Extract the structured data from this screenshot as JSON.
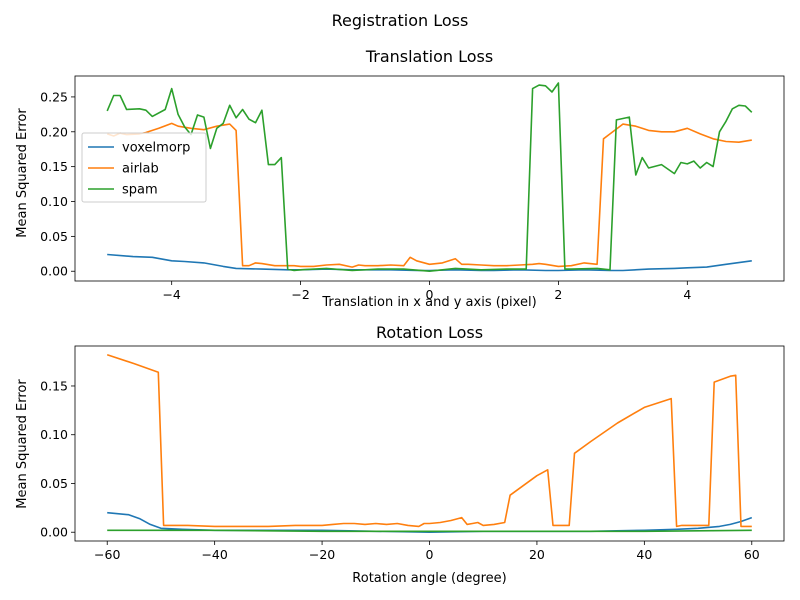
{
  "suptitle": "Registration Loss",
  "chart_data": [
    {
      "type": "line",
      "title": "Translation Loss",
      "xlabel": "Translation in x and y axis (pixel)",
      "ylabel": "Mean Squared Error",
      "xlim": [
        -5.5,
        5.5
      ],
      "ylim": [
        -0.014,
        0.28
      ],
      "xticks": [
        -4,
        -2,
        0,
        2,
        4
      ],
      "yticks": [
        0.0,
        0.05,
        0.1,
        0.15,
        0.2,
        0.25
      ],
      "ytick_labels": [
        "0.00",
        "0.05",
        "0.10",
        "0.15",
        "0.20",
        "0.25"
      ],
      "legend": "center-left",
      "series": [
        {
          "name": "voxelmorp",
          "color": "#1f77b4",
          "x": [
            -5,
            -4.6,
            -4.3,
            -4,
            -3.8,
            -3.5,
            -3.2,
            -3,
            -2.6,
            -2.2,
            -2,
            -1.6,
            -1.2,
            -1,
            -0.6,
            -0.2,
            0,
            0.4,
            0.8,
            1,
            1.4,
            1.8,
            2,
            2.4,
            2.8,
            3,
            3.4,
            3.8,
            4,
            4.3,
            4.6,
            5
          ],
          "y": [
            0.024,
            0.021,
            0.02,
            0.015,
            0.014,
            0.012,
            0.007,
            0.004,
            0.003,
            0.002,
            0.002,
            0.003,
            0.002,
            0.002,
            0.002,
            0.001,
            0.001,
            0.002,
            0.001,
            0.001,
            0.002,
            0.001,
            0.001,
            0.002,
            0.001,
            0.001,
            0.003,
            0.004,
            0.005,
            0.006,
            0.01,
            0.015
          ]
        },
        {
          "name": "airlab",
          "color": "#ff7f0e",
          "x": [
            -5,
            -4.9,
            -4.8,
            -4.7,
            -4.5,
            -4.4,
            -4.2,
            -4.0,
            -3.9,
            -3.7,
            -3.5,
            -3.3,
            -3.1,
            -3.0,
            -2.9,
            -2.8,
            -2.7,
            -2.6,
            -2.4,
            -2.2,
            -2.1,
            -2.0,
            -1.8,
            -1.6,
            -1.4,
            -1.2,
            -1.1,
            -1.0,
            -0.9,
            -0.8,
            -0.6,
            -0.4,
            -0.3,
            -0.2,
            0,
            0.2,
            0.4,
            0.5,
            0.6,
            0.8,
            1.0,
            1.2,
            1.4,
            1.6,
            1.7,
            1.8,
            2.0,
            2.2,
            2.4,
            2.6,
            2.7,
            2.8,
            3.0,
            3.2,
            3.4,
            3.6,
            3.8,
            4.0,
            4.2,
            4.4,
            4.6,
            4.8,
            5.0
          ],
          "y": [
            0.197,
            0.194,
            0.198,
            0.196,
            0.197,
            0.199,
            0.205,
            0.212,
            0.208,
            0.205,
            0.203,
            0.208,
            0.211,
            0.202,
            0.008,
            0.008,
            0.012,
            0.011,
            0.008,
            0.008,
            0.008,
            0.007,
            0.007,
            0.009,
            0.01,
            0.006,
            0.009,
            0.008,
            0.008,
            0.008,
            0.009,
            0.008,
            0.02,
            0.015,
            0.01,
            0.012,
            0.018,
            0.01,
            0.01,
            0.009,
            0.008,
            0.008,
            0.009,
            0.01,
            0.011,
            0.01,
            0.007,
            0.008,
            0.012,
            0.01,
            0.19,
            0.197,
            0.211,
            0.208,
            0.202,
            0.2,
            0.2,
            0.205,
            0.197,
            0.19,
            0.186,
            0.185,
            0.188
          ]
        },
        {
          "name": "spam",
          "color": "#2ca02c",
          "x": [
            -5,
            -4.9,
            -4.8,
            -4.7,
            -4.5,
            -4.4,
            -4.3,
            -4.1,
            -4.0,
            -3.9,
            -3.8,
            -3.7,
            -3.6,
            -3.5,
            -3.4,
            -3.3,
            -3.2,
            -3.1,
            -3.0,
            -2.9,
            -2.8,
            -2.7,
            -2.6,
            -2.5,
            -2.4,
            -2.3,
            -2.2,
            -2.1,
            -2.0,
            -1.6,
            -1.2,
            -0.8,
            -0.4,
            0,
            0.4,
            0.8,
            1.2,
            1.5,
            1.6,
            1.7,
            1.8,
            1.9,
            2.0,
            2.1,
            2.2,
            2.6,
            2.8,
            2.9,
            3.0,
            3.1,
            3.2,
            3.3,
            3.4,
            3.6,
            3.8,
            3.9,
            4.0,
            4.1,
            4.2,
            4.3,
            4.4,
            4.5,
            4.6,
            4.7,
            4.8,
            4.9,
            5.0
          ],
          "y": [
            0.23,
            0.252,
            0.252,
            0.232,
            0.233,
            0.231,
            0.222,
            0.232,
            0.262,
            0.225,
            0.207,
            0.196,
            0.224,
            0.221,
            0.176,
            0.205,
            0.212,
            0.238,
            0.22,
            0.232,
            0.218,
            0.213,
            0.231,
            0.153,
            0.153,
            0.163,
            0.003,
            0.001,
            0.002,
            0.004,
            0.001,
            0.003,
            0.003,
            0.0,
            0.004,
            0.002,
            0.003,
            0.003,
            0.262,
            0.267,
            0.266,
            0.257,
            0.27,
            0.003,
            0.003,
            0.004,
            0.002,
            0.217,
            0.219,
            0.221,
            0.138,
            0.163,
            0.148,
            0.153,
            0.14,
            0.156,
            0.154,
            0.158,
            0.148,
            0.156,
            0.15,
            0.2,
            0.215,
            0.233,
            0.238,
            0.237,
            0.228
          ]
        }
      ]
    },
    {
      "type": "line",
      "title": "Rotation Loss",
      "xlabel": "Rotation angle (degree)",
      "ylabel": "Mean Squared Error",
      "xlim": [
        -66,
        66
      ],
      "ylim": [
        -0.009,
        0.191
      ],
      "xticks": [
        -60,
        -40,
        -20,
        0,
        20,
        40,
        60
      ],
      "yticks": [
        0.0,
        0.05,
        0.1,
        0.15
      ],
      "ytick_labels": [
        "0.00",
        "0.05",
        "0.10",
        "0.15"
      ],
      "series": [
        {
          "name": "voxelmorp",
          "color": "#1f77b4",
          "x": [
            -60,
            -56,
            -54,
            -52,
            -50,
            -46,
            -40,
            -30,
            -20,
            -10,
            0,
            10,
            20,
            30,
            40,
            46,
            50,
            54,
            56,
            58,
            60
          ],
          "y": [
            0.02,
            0.018,
            0.014,
            0.008,
            0.004,
            0.003,
            0.002,
            0.002,
            0.002,
            0.001,
            0.0,
            0.001,
            0.001,
            0.001,
            0.002,
            0.003,
            0.004,
            0.006,
            0.008,
            0.011,
            0.015
          ],
          "visible": true
        },
        {
          "name": "airlab",
          "color": "#ff7f0e",
          "x": [
            -60,
            -55,
            -50.5,
            -49.5,
            -45,
            -40,
            -35,
            -30,
            -25,
            -20,
            -18,
            -16,
            -14,
            -12,
            -10,
            -8,
            -6,
            -4,
            -2,
            -1,
            0,
            2,
            4,
            6,
            7,
            8,
            9,
            10,
            12,
            14,
            15,
            20,
            22,
            23,
            24,
            26,
            27,
            30,
            35,
            40,
            45,
            46,
            47,
            50,
            52,
            53,
            56,
            57,
            58,
            60
          ],
          "y": [
            0.182,
            0.173,
            0.164,
            0.007,
            0.007,
            0.006,
            0.006,
            0.006,
            0.007,
            0.007,
            0.008,
            0.009,
            0.009,
            0.008,
            0.009,
            0.008,
            0.009,
            0.007,
            0.006,
            0.009,
            0.009,
            0.01,
            0.012,
            0.015,
            0.008,
            0.009,
            0.01,
            0.007,
            0.008,
            0.01,
            0.038,
            0.058,
            0.064,
            0.007,
            0.007,
            0.007,
            0.081,
            0.093,
            0.112,
            0.128,
            0.137,
            0.006,
            0.007,
            0.007,
            0.007,
            0.154,
            0.16,
            0.161,
            0.006,
            0.006
          ]
        },
        {
          "name": "spam",
          "color": "#2ca02c",
          "x": [
            -60,
            -40,
            -20,
            0,
            20,
            40,
            60
          ],
          "y": [
            0.002,
            0.002,
            0.001,
            0.001,
            0.001,
            0.001,
            0.002
          ]
        }
      ]
    }
  ]
}
